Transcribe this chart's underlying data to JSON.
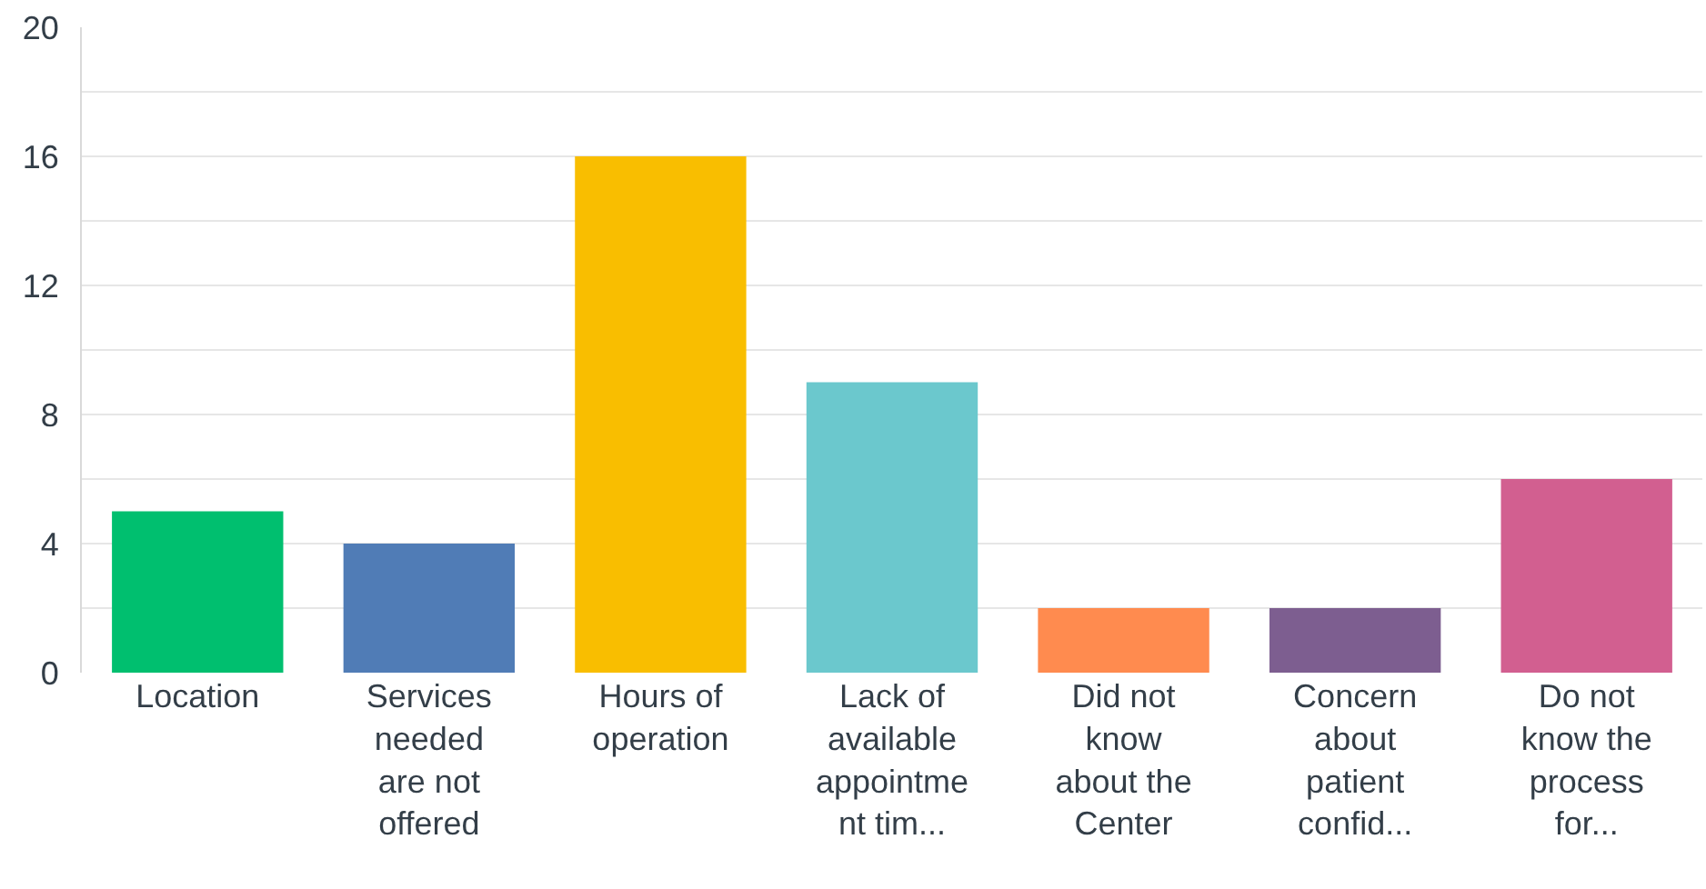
{
  "chart_data": {
    "type": "bar",
    "categories": [
      "Location",
      "Services needed are not offered",
      "Hours of operation",
      "Lack of available appointment tim...",
      "Did not know about the Center",
      "Concern about patient confid...",
      "Do not know the process for..."
    ],
    "values": [
      5,
      4,
      16,
      9,
      2,
      2,
      6
    ],
    "colors": [
      "#00bf6f",
      "#507cb6",
      "#f9be00",
      "#6bc8cd",
      "#ff8b4f",
      "#7d5e90",
      "#d25f90"
    ],
    "ylim": [
      0,
      20
    ],
    "yticks": [
      0,
      {
        "value": 2,
        "label": null
      },
      4,
      {
        "value": 6,
        "label": null
      },
      8,
      {
        "value": 10,
        "label": null
      },
      12,
      {
        "value": 14,
        "label": null
      },
      16,
      {
        "value": 18,
        "label": null
      },
      20
    ],
    "grid": "y"
  }
}
